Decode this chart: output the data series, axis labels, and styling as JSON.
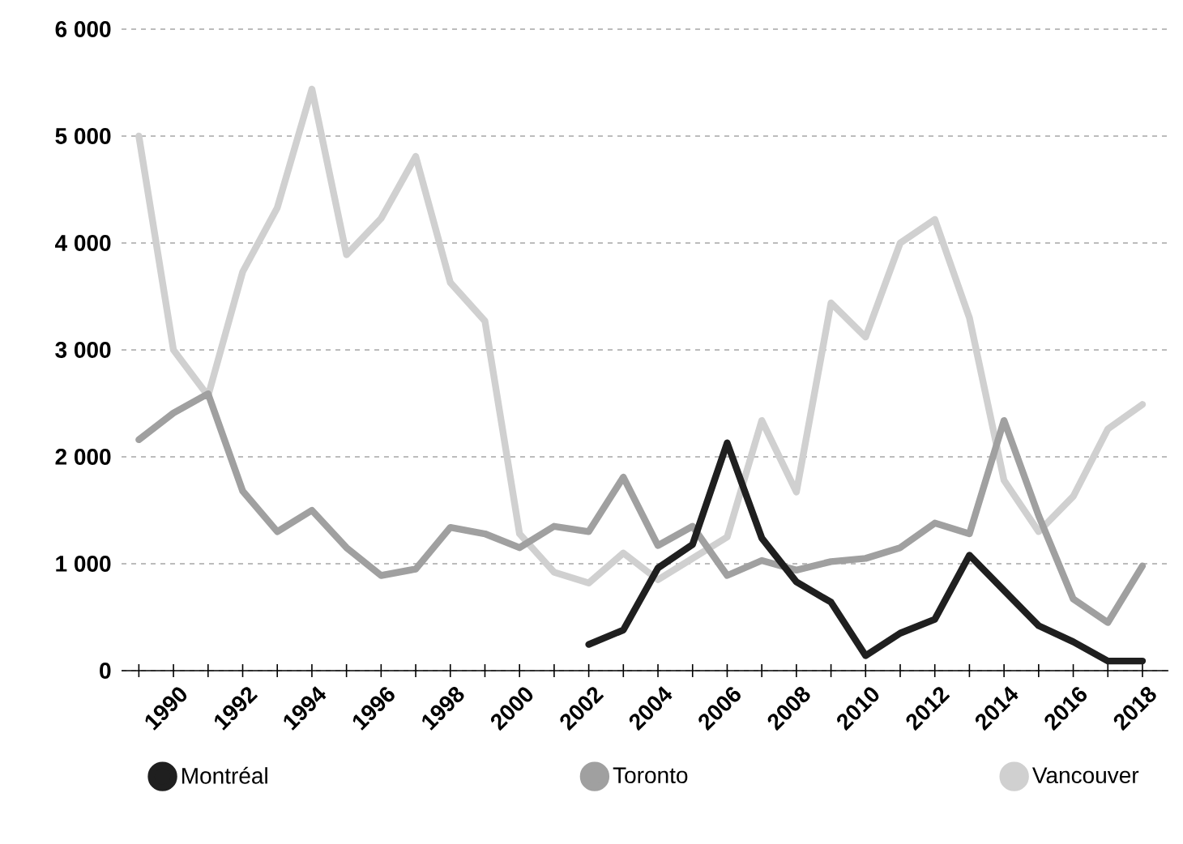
{
  "chart_data": {
    "type": "line",
    "x": [
      1989,
      1990,
      1991,
      1992,
      1993,
      1994,
      1995,
      1996,
      1997,
      1998,
      1999,
      2000,
      2001,
      2002,
      2003,
      2004,
      2005,
      2006,
      2007,
      2008,
      2009,
      2010,
      2011,
      2012,
      2013,
      2014,
      2015,
      2016,
      2017,
      2018
    ],
    "series": [
      {
        "name": "Montréal",
        "color": "#1f1f1f",
        "values": [
          null,
          null,
          null,
          null,
          null,
          null,
          null,
          null,
          null,
          null,
          null,
          null,
          null,
          245,
          380,
          960,
          1180,
          2130,
          1240,
          830,
          640,
          140,
          350,
          480,
          1080,
          750,
          420,
          270,
          90,
          90
        ]
      },
      {
        "name": "Toronto",
        "color": "#a0a0a0",
        "values": [
          2160,
          2410,
          2590,
          1680,
          1300,
          1500,
          1150,
          890,
          950,
          1340,
          1280,
          1150,
          1350,
          1300,
          1810,
          1170,
          1350,
          890,
          1030,
          940,
          1020,
          1050,
          1150,
          1380,
          1280,
          2340,
          1450,
          670,
          450,
          980
        ]
      },
      {
        "name": "Vancouver",
        "color": "#d0d0d0",
        "values": [
          5000,
          3000,
          2570,
          3730,
          4330,
          5440,
          3890,
          4230,
          4810,
          3630,
          3270,
          1280,
          920,
          820,
          1100,
          850,
          1050,
          1250,
          2340,
          1670,
          3440,
          3120,
          4000,
          4220,
          3300,
          1780,
          1300,
          1630,
          2260,
          2490
        ]
      }
    ],
    "xlim": [
      1988.5,
      2018.75
    ],
    "xticks": [
      {
        "value": 1989,
        "label": null
      },
      1990,
      {
        "value": 1991,
        "label": null
      },
      1992,
      {
        "value": 1993,
        "label": null
      },
      1994,
      {
        "value": 1995,
        "label": null
      },
      1996,
      {
        "value": 1997,
        "label": null
      },
      1998,
      {
        "value": 1999,
        "label": null
      },
      2000,
      {
        "value": 2001,
        "label": null
      },
      2002,
      {
        "value": 2003,
        "label": null
      },
      2004,
      {
        "value": 2005,
        "label": null
      },
      2006,
      {
        "value": 2007,
        "label": null
      },
      2008,
      {
        "value": 2009,
        "label": null
      },
      2010,
      {
        "value": 2011,
        "label": null
      },
      2012,
      {
        "value": 2013,
        "label": null
      },
      2014,
      {
        "value": 2015,
        "label": null
      },
      2016,
      {
        "value": 2017,
        "label": null
      },
      2018
    ],
    "ylim": [
      0,
      6000
    ],
    "yticks": [
      0,
      {
        "value": 1000,
        "label": "1 000"
      },
      {
        "value": 2000,
        "label": "2 000"
      },
      {
        "value": 3000,
        "label": "3 000"
      },
      {
        "value": 4000,
        "label": "4 000"
      },
      {
        "value": 5000,
        "label": "5 000"
      },
      {
        "value": 6000,
        "label": "6 000"
      }
    ],
    "grid": "y",
    "legend": "bottom"
  }
}
